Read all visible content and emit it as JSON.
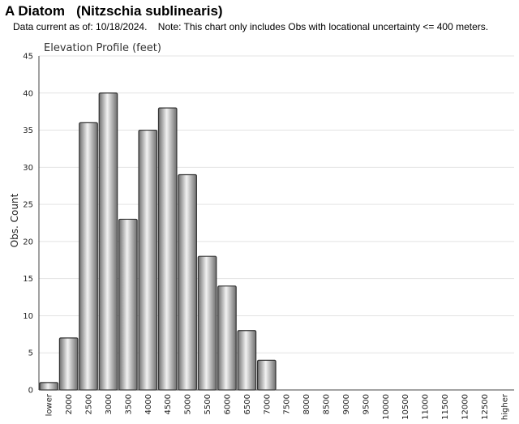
{
  "header": {
    "title": "A Diatom   (Nitzschia sublinearis)",
    "subtitle": "Data current as of: 10/18/2024.    Note: This chart only includes Obs with locational uncertainty <= 400 meters."
  },
  "chart_data": {
    "type": "bar",
    "title": "Elevation Profile (feet)",
    "xlabel": "",
    "ylabel": "Obs. Count",
    "ylim": [
      0,
      45
    ],
    "yticks": [
      0,
      5,
      10,
      15,
      20,
      25,
      30,
      35,
      40,
      45
    ],
    "grid": true,
    "categories": [
      "lower",
      "2000",
      "2500",
      "3000",
      "3500",
      "4000",
      "4500",
      "5000",
      "5500",
      "6000",
      "6500",
      "7000",
      "7500",
      "8000",
      "8500",
      "9000",
      "9500",
      "10000",
      "10500",
      "11000",
      "11500",
      "12000",
      "12500",
      "higher"
    ],
    "values": [
      1,
      7,
      36,
      40,
      23,
      35,
      38,
      29,
      18,
      14,
      8,
      4,
      0,
      0,
      0,
      0,
      0,
      0,
      0,
      0,
      0,
      0,
      0,
      0
    ],
    "colors": {
      "bar_dark": "#6e6e6e",
      "bar_light": "#f2f2f2",
      "bar_stroke": "#333333",
      "grid": "#e3e3e3",
      "axis": "#444444"
    }
  }
}
